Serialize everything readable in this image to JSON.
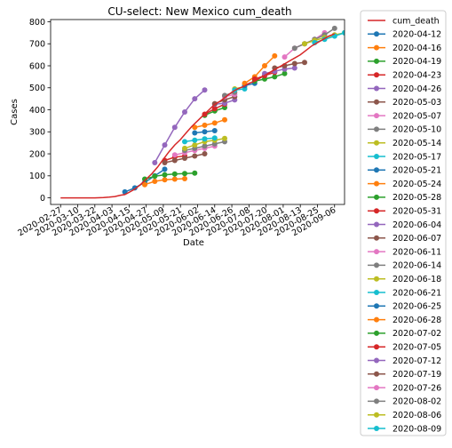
{
  "chart_data": {
    "type": "line",
    "title": "CU-select: New Mexico cum_death",
    "xlabel": "Date",
    "ylabel": "Cases",
    "ylim": [
      -30,
      810
    ],
    "xlim": [
      "2020-02-20",
      "2020-09-13"
    ],
    "yticks": [
      0,
      100,
      200,
      300,
      400,
      500,
      600,
      700,
      800
    ],
    "xticks": [
      "2020-02-27",
      "2020-03-10",
      "2020-03-22",
      "2020-04-03",
      "2020-04-15",
      "2020-04-27",
      "2020-05-09",
      "2020-05-21",
      "2020-06-02",
      "2020-06-14",
      "2020-06-26",
      "2020-07-08",
      "2020-07-20",
      "2020-08-01",
      "2020-08-13",
      "2020-08-25",
      "2020-09-06"
    ],
    "grid": false,
    "legend_position": "outside-right",
    "actual": {
      "name": "cum_death",
      "color": "#d62728",
      "x": [
        "2020-02-27",
        "2020-03-10",
        "2020-03-22",
        "2020-03-28",
        "2020-04-01",
        "2020-04-05",
        "2020-04-09",
        "2020-04-12",
        "2020-04-15",
        "2020-04-19",
        "2020-04-23",
        "2020-04-27",
        "2020-05-01",
        "2020-05-05",
        "2020-05-09",
        "2020-05-13",
        "2020-05-17",
        "2020-05-21",
        "2020-05-25",
        "2020-05-29",
        "2020-06-02",
        "2020-06-06",
        "2020-06-10",
        "2020-06-14",
        "2020-06-18",
        "2020-06-22",
        "2020-06-26",
        "2020-06-30",
        "2020-07-04",
        "2020-07-08",
        "2020-07-12",
        "2020-07-16",
        "2020-07-20",
        "2020-07-24",
        "2020-07-28",
        "2020-08-01",
        "2020-08-05",
        "2020-08-09",
        "2020-08-13",
        "2020-08-17",
        "2020-08-21",
        "2020-08-25",
        "2020-08-29",
        "2020-09-02",
        "2020-09-06"
      ],
      "y": [
        0,
        0,
        0,
        1,
        3,
        6,
        12,
        15,
        25,
        40,
        60,
        85,
        110,
        140,
        175,
        210,
        240,
        265,
        295,
        325,
        350,
        375,
        400,
        425,
        440,
        460,
        480,
        495,
        505,
        520,
        530,
        545,
        560,
        575,
        590,
        605,
        620,
        635,
        650,
        670,
        690,
        705,
        720,
        735,
        745
      ]
    },
    "forecasts": [
      {
        "name": "2020-04-12",
        "color": "#1f77b4",
        "x": [
          "2020-04-12",
          "2020-04-19",
          "2020-04-26",
          "2020-05-03",
          "2020-05-10"
        ],
        "y": [
          27,
          45,
          70,
          100,
          130
        ]
      },
      {
        "name": "2020-04-16",
        "color": "#ff7f0e",
        "x": [
          "2020-04-26",
          "2020-05-03",
          "2020-05-10",
          "2020-05-17",
          "2020-05-24"
        ],
        "y": [
          60,
          75,
          82,
          85,
          87
        ]
      },
      {
        "name": "2020-04-19",
        "color": "#2ca02c",
        "x": [
          "2020-04-26",
          "2020-05-03",
          "2020-05-10",
          "2020-05-17",
          "2020-05-24",
          "2020-05-31"
        ],
        "y": [
          85,
          98,
          105,
          108,
          110,
          112
        ]
      },
      {
        "name": "2020-04-23",
        "color": "#d62728",
        "x": [
          "2020-05-10",
          "2020-05-17",
          "2020-05-24"
        ],
        "y": [
          170,
          185,
          190
        ]
      },
      {
        "name": "2020-04-26",
        "color": "#9467bd",
        "x": [
          "2020-05-03",
          "2020-05-10",
          "2020-05-17",
          "2020-05-24",
          "2020-05-31",
          "2020-06-07"
        ],
        "y": [
          160,
          240,
          320,
          390,
          450,
          490
        ]
      },
      {
        "name": "2020-05-03",
        "color": "#8c564b",
        "x": [
          "2020-05-10",
          "2020-05-17",
          "2020-05-24",
          "2020-05-31",
          "2020-06-07"
        ],
        "y": [
          160,
          170,
          180,
          190,
          200
        ]
      },
      {
        "name": "2020-05-07",
        "color": "#e377c2",
        "x": [
          "2020-05-17",
          "2020-05-24",
          "2020-05-31",
          "2020-06-07",
          "2020-06-14"
        ],
        "y": [
          195,
          205,
          215,
          225,
          235
        ]
      },
      {
        "name": "2020-05-10",
        "color": "#7f7f7f",
        "x": [
          "2020-05-24",
          "2020-05-31",
          "2020-06-07",
          "2020-06-14",
          "2020-06-21"
        ],
        "y": [
          215,
          225,
          235,
          245,
          255
        ]
      },
      {
        "name": "2020-05-14",
        "color": "#bcbd22",
        "x": [
          "2020-05-24",
          "2020-05-31",
          "2020-06-07",
          "2020-06-14",
          "2020-06-21"
        ],
        "y": [
          225,
          240,
          255,
          262,
          270
        ]
      },
      {
        "name": "2020-05-17",
        "color": "#17becf",
        "x": [
          "2020-05-24",
          "2020-05-31",
          "2020-06-07",
          "2020-06-14"
        ],
        "y": [
          255,
          262,
          268,
          272
        ]
      },
      {
        "name": "2020-05-21",
        "color": "#1f77b4",
        "x": [
          "2020-05-31",
          "2020-06-07",
          "2020-06-14"
        ],
        "y": [
          295,
          300,
          305
        ]
      },
      {
        "name": "2020-05-24",
        "color": "#ff7f0e",
        "x": [
          "2020-05-31",
          "2020-06-07",
          "2020-06-14",
          "2020-06-21"
        ],
        "y": [
          320,
          330,
          340,
          355
        ]
      },
      {
        "name": "2020-05-28",
        "color": "#2ca02c",
        "x": [
          "2020-06-07",
          "2020-06-14",
          "2020-06-21"
        ],
        "y": [
          375,
          395,
          410
        ]
      },
      {
        "name": "2020-05-31",
        "color": "#d62728",
        "x": [
          "2020-06-07",
          "2020-06-14",
          "2020-06-21"
        ],
        "y": [
          380,
          405,
          425
        ]
      },
      {
        "name": "2020-06-04",
        "color": "#9467bd",
        "x": [
          "2020-06-14",
          "2020-06-21",
          "2020-06-28"
        ],
        "y": [
          425,
          430,
          445
        ]
      },
      {
        "name": "2020-06-07",
        "color": "#8c564b",
        "x": [
          "2020-06-14",
          "2020-06-21",
          "2020-06-28"
        ],
        "y": [
          428,
          445,
          460
        ]
      },
      {
        "name": "2020-06-11",
        "color": "#e377c2",
        "x": [
          "2020-06-21",
          "2020-06-28"
        ],
        "y": [
          460,
          470
        ]
      },
      {
        "name": "2020-06-14",
        "color": "#7f7f7f",
        "x": [
          "2020-06-21",
          "2020-06-28"
        ],
        "y": [
          465,
          480
        ]
      },
      {
        "name": "2020-06-18",
        "color": "#bcbd22",
        "x": [
          "2020-06-28",
          "2020-07-05"
        ],
        "y": [
          495,
          505
        ]
      },
      {
        "name": "2020-06-21",
        "color": "#17becf",
        "x": [
          "2020-06-28",
          "2020-07-05"
        ],
        "y": [
          490,
          495
        ]
      },
      {
        "name": "2020-06-25",
        "color": "#1f77b4",
        "x": [
          "2020-07-05",
          "2020-07-12"
        ],
        "y": [
          510,
          520
        ]
      },
      {
        "name": "2020-06-28",
        "color": "#ff7f0e",
        "x": [
          "2020-07-05",
          "2020-07-12",
          "2020-07-19",
          "2020-07-26"
        ],
        "y": [
          520,
          550,
          600,
          645
        ]
      },
      {
        "name": "2020-07-02",
        "color": "#2ca02c",
        "x": [
          "2020-07-12",
          "2020-07-19",
          "2020-07-26",
          "2020-08-02"
        ],
        "y": [
          530,
          540,
          550,
          565
        ]
      },
      {
        "name": "2020-07-05",
        "color": "#d62728",
        "x": [
          "2020-07-12",
          "2020-07-19",
          "2020-07-26"
        ],
        "y": [
          540,
          555,
          570
        ]
      },
      {
        "name": "2020-07-12",
        "color": "#9467bd",
        "x": [
          "2020-07-19",
          "2020-07-26",
          "2020-08-02",
          "2020-08-09"
        ],
        "y": [
          565,
          575,
          585,
          590
        ]
      },
      {
        "name": "2020-07-19",
        "color": "#8c564b",
        "x": [
          "2020-07-26",
          "2020-08-02",
          "2020-08-09",
          "2020-08-16"
        ],
        "y": [
          590,
          600,
          610,
          615
        ]
      },
      {
        "name": "2020-07-26",
        "color": "#e377c2",
        "x": [
          "2020-08-02",
          "2020-08-09",
          "2020-08-16",
          "2020-08-23",
          "2020-08-30"
        ],
        "y": [
          640,
          680,
          700,
          720,
          750
        ]
      },
      {
        "name": "2020-08-02",
        "color": "#7f7f7f",
        "x": [
          "2020-08-09",
          "2020-08-16",
          "2020-08-23",
          "2020-08-30",
          "2020-09-06"
        ],
        "y": [
          680,
          700,
          720,
          740,
          770
        ]
      },
      {
        "name": "2020-08-06",
        "color": "#bcbd22",
        "x": [
          "2020-08-16",
          "2020-08-23",
          "2020-08-30",
          "2020-09-06",
          "2020-09-13"
        ],
        "y": [
          700,
          715,
          728,
          740,
          750
        ]
      },
      {
        "name": "2020-08-09",
        "color": "#17becf",
        "x": [
          "2020-08-23",
          "2020-08-30",
          "2020-09-06",
          "2020-09-13"
        ],
        "y": [
          705,
          720,
          735,
          750
        ]
      }
    ]
  }
}
